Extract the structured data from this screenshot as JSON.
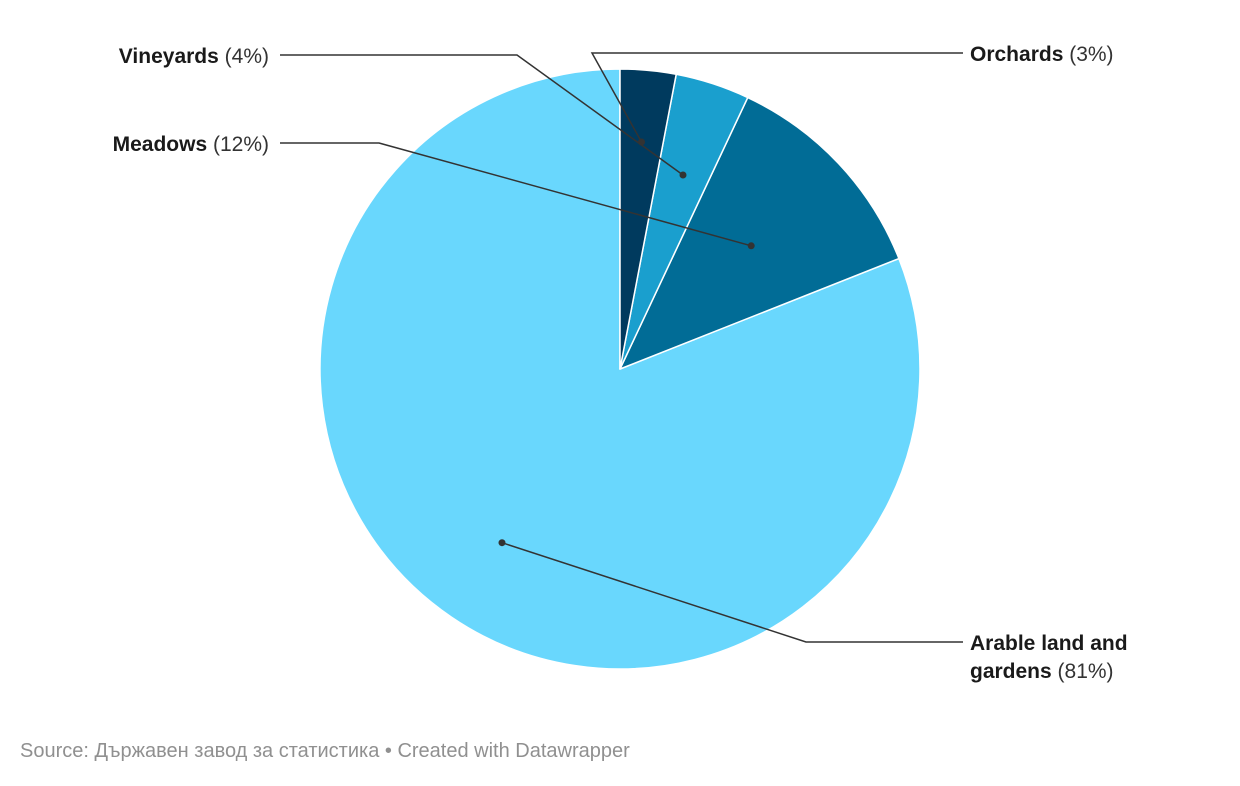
{
  "chart_data": {
    "type": "pie",
    "slices": [
      {
        "label": "Arable land and gardens",
        "label_lines": [
          "Arable land and",
          "gardens"
        ],
        "value": 81,
        "value_text": "(81%)",
        "color": "#69d7fd"
      },
      {
        "label": "Meadows",
        "label_lines": [
          "Meadows"
        ],
        "value": 12,
        "value_text": "(12%)",
        "color": "#016c96"
      },
      {
        "label": "Vineyards",
        "label_lines": [
          "Vineyards"
        ],
        "value": 4,
        "value_text": "(4%)",
        "color": "#1a9fce"
      },
      {
        "label": "Orchards",
        "label_lines": [
          "Orchards"
        ],
        "value": 3,
        "value_text": "(3%)",
        "color": "#003a5e"
      }
    ],
    "start": "12 o'clock",
    "direction": "counterclockwise",
    "legend": "none"
  },
  "footer": {
    "text": "Source: Държавен завод за статистика • Created with Datawrapper"
  }
}
